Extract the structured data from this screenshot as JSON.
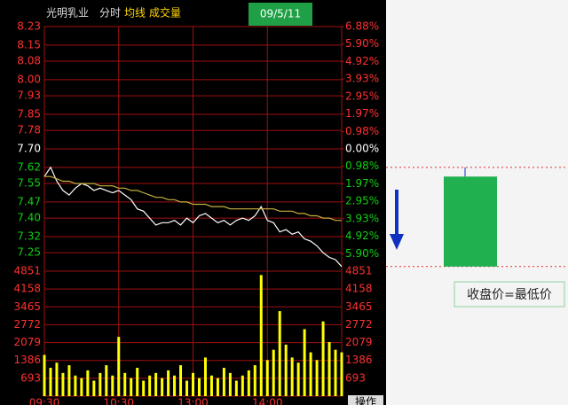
{
  "header": {
    "date": "09/5/11",
    "action": "操作"
  },
  "chart_data": [
    {
      "type": "line",
      "title": "光明乳业",
      "subtitle": "分时",
      "annotation": "收盘价=最低价",
      "x": [
        0,
        5,
        10,
        15,
        20,
        25,
        30,
        35,
        40,
        45,
        50,
        55,
        60,
        65,
        70,
        75,
        80,
        85,
        90,
        95,
        100,
        105,
        110,
        115,
        120,
        125,
        130,
        135,
        140,
        145,
        150,
        155,
        160,
        165,
        170,
        175,
        180,
        185,
        190,
        195,
        200,
        205,
        210,
        215,
        220,
        225,
        230,
        235,
        240
      ],
      "xlim": [
        0,
        240
      ],
      "series": [
        {
          "color": "#ffffff",
          "values": [
            7.58,
            7.62,
            7.56,
            7.52,
            7.5,
            7.53,
            7.55,
            7.54,
            7.52,
            7.53,
            7.52,
            7.51,
            7.52,
            7.5,
            7.48,
            7.44,
            7.43,
            7.4,
            7.37,
            7.38,
            7.38,
            7.39,
            7.37,
            7.4,
            7.38,
            7.41,
            7.42,
            7.4,
            7.38,
            7.39,
            7.37,
            7.39,
            7.4,
            7.39,
            7.41,
            7.45,
            7.39,
            7.38,
            7.34,
            7.35,
            7.33,
            7.34,
            7.31,
            7.3,
            7.28,
            7.25,
            7.23,
            7.22,
            7.19
          ]
        },
        {
          "name": "均线",
          "color": "#c8b040",
          "values": [
            7.58,
            7.58,
            7.57,
            7.56,
            7.56,
            7.55,
            7.55,
            7.55,
            7.55,
            7.54,
            7.54,
            7.54,
            7.53,
            7.53,
            7.52,
            7.52,
            7.51,
            7.5,
            7.49,
            7.49,
            7.48,
            7.48,
            7.47,
            7.47,
            7.46,
            7.46,
            7.46,
            7.45,
            7.45,
            7.45,
            7.44,
            7.44,
            7.44,
            7.44,
            7.44,
            7.44,
            7.44,
            7.44,
            7.43,
            7.43,
            7.43,
            7.42,
            7.42,
            7.41,
            7.41,
            7.4,
            7.4,
            7.39,
            7.39
          ]
        }
      ],
      "ylim": [
        7.17,
        8.23
      ],
      "yticks": [
        8.23,
        8.15,
        8.08,
        {
          "value": 8,
          "label": "8.00"
        },
        7.93,
        7.85,
        7.78,
        {
          "value": 7.7,
          "label": "7.70"
        },
        7.62,
        7.55,
        7.47,
        {
          "value": 7.4,
          "label": "7.40"
        },
        7.32,
        7.25
      ],
      "y2lim": [
        -6.88,
        6.88
      ],
      "y2ticks": [
        {
          "value": 6.88,
          "label": "6.88%"
        },
        {
          "value": 5.9,
          "label": "5.90%"
        },
        {
          "value": 4.92,
          "label": "4.92%"
        },
        {
          "value": 3.93,
          "label": "3.93%"
        },
        {
          "value": 2.95,
          "label": "2.95%"
        },
        {
          "value": 1.97,
          "label": "1.97%"
        },
        {
          "value": 0.98,
          "label": "0.98%"
        },
        {
          "value": 0,
          "label": "0.00%"
        },
        {
          "value": -0.98,
          "label": "0.98%"
        },
        {
          "value": -1.97,
          "label": "1.97%"
        },
        {
          "value": -2.95,
          "label": "2.95%"
        },
        {
          "value": -3.93,
          "label": "3.93%"
        },
        {
          "value": -4.92,
          "label": "4.92%"
        },
        {
          "value": -5.9,
          "label": "5.90%"
        }
      ],
      "grid": true
    },
    {
      "type": "bar",
      "title": "成交量",
      "color": "#ffff00",
      "x": [
        0,
        5,
        10,
        15,
        20,
        25,
        30,
        35,
        40,
        45,
        50,
        55,
        60,
        65,
        70,
        75,
        80,
        85,
        90,
        95,
        100,
        105,
        110,
        115,
        120,
        125,
        130,
        135,
        140,
        145,
        150,
        155,
        160,
        165,
        170,
        175,
        180,
        185,
        190,
        195,
        200,
        205,
        210,
        215,
        220,
        225,
        230,
        235,
        240
      ],
      "xlim": [
        0,
        240
      ],
      "xticks": [
        {
          "value": 0,
          "label": "09:30"
        },
        {
          "value": 60,
          "label": "10:30"
        },
        {
          "value": 120,
          "label": "13:00"
        },
        {
          "value": 180,
          "label": "14:00"
        }
      ],
      "values": [
        1600,
        1100,
        1300,
        900,
        1200,
        800,
        700,
        1000,
        600,
        900,
        1200,
        800,
        2300,
        900,
        700,
        1100,
        600,
        800,
        900,
        700,
        1000,
        800,
        1200,
        600,
        900,
        700,
        1500,
        800,
        700,
        1100,
        900,
        600,
        800,
        1000,
        1200,
        4700,
        1400,
        1800,
        3300,
        2000,
        1500,
        1300,
        2600,
        1700,
        1400,
        2900,
        2100,
        1800,
        1700
      ],
      "ylim": [
        0,
        4851
      ],
      "yticks": [
        4851,
        4158,
        3465,
        2772,
        2079,
        1386,
        693
      ],
      "grid": true
    }
  ]
}
